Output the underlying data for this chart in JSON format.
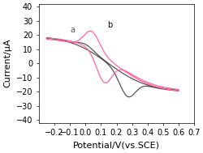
{
  "title": "",
  "xlabel": "Potential/V(vs.SCE)",
  "ylabel": "Current/μA",
  "xlim": [
    -0.3,
    0.7
  ],
  "ylim": [
    -42,
    42
  ],
  "xticks": [
    -0.2,
    -0.1,
    0.0,
    0.1,
    0.2,
    0.3,
    0.4,
    0.5,
    0.6,
    0.7
  ],
  "yticks": [
    -40,
    -30,
    -20,
    -10,
    0,
    10,
    20,
    30,
    40
  ],
  "curve_a_color": "#555555",
  "curve_b_color": "#ff6699",
  "label_a": "a",
  "label_b": "b",
  "xlabel_fontsize": 8,
  "ylabel_fontsize": 8,
  "tick_fontsize": 7
}
